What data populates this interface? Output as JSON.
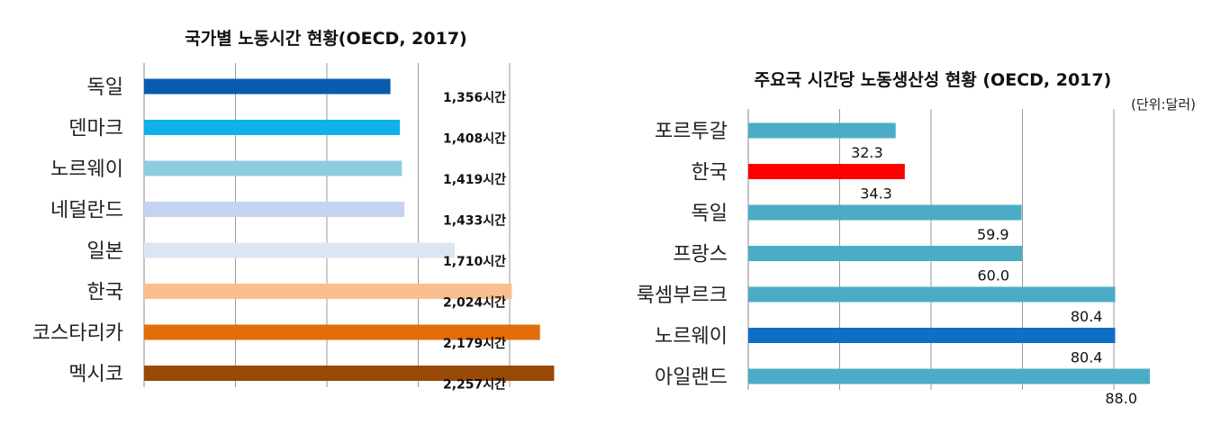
{
  "chart_data": [
    {
      "type": "bar",
      "orientation": "horizontal",
      "title": "국가별 노동시간 현황(OECD, 2017)",
      "categories": [
        "독일",
        "덴마크",
        "노르웨이",
        "네덜란드",
        "일본",
        "한국",
        "코스타리카",
        "멕시코"
      ],
      "values": [
        1356,
        1408,
        1419,
        1433,
        1710,
        2024,
        2179,
        2257
      ],
      "value_labels": [
        "1,356시간",
        "1,408시간",
        "1,419시간",
        "1,433시간",
        "1,710시간",
        "2,024시간",
        "2,179시간",
        "2,257시간"
      ],
      "colors": [
        "#0a5bb0",
        "#10b0ea",
        "#8fcbe0",
        "#c6d3ee",
        "#dce6f2",
        "#fabf8f",
        "#e46c0a",
        "#984807"
      ],
      "xlim": [
        0,
        2250
      ],
      "grid": true
    },
    {
      "type": "bar",
      "orientation": "horizontal",
      "title": "주요국 시간당 노동생산성 현황 (OECD, 2017)",
      "unit_note": "(단위:달러)",
      "categories": [
        "포르투갈",
        "한국",
        "독일",
        "프랑스",
        "룩셈부르크",
        "노르웨이",
        "아일랜드"
      ],
      "values": [
        32.3,
        34.3,
        59.9,
        60.0,
        80.4,
        80.4,
        88.0
      ],
      "value_labels": [
        "32.3",
        "34.3",
        "59.9",
        "60.0",
        "80.4",
        "80.4",
        "88.0"
      ],
      "colors": [
        "#4bacc6",
        "#ff0000",
        "#4bacc6",
        "#4bacc6",
        "#4bacc6",
        "#0f6fc6",
        "#4bacc6"
      ],
      "xlim": [
        0,
        88
      ],
      "grid": true
    }
  ]
}
